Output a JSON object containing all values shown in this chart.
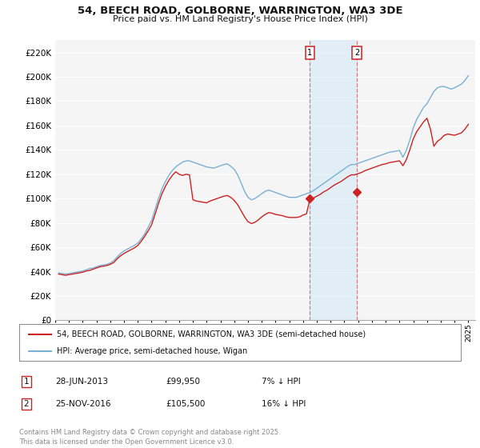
{
  "title": "54, BEECH ROAD, GOLBORNE, WARRINGTON, WA3 3DE",
  "subtitle": "Price paid vs. HM Land Registry's House Price Index (HPI)",
  "background_color": "#ffffff",
  "plot_bg_color": "#f5f5f5",
  "grid_color": "#ffffff",
  "ylim": [
    0,
    230000
  ],
  "yticks": [
    0,
    20000,
    40000,
    60000,
    80000,
    100000,
    120000,
    140000,
    160000,
    180000,
    200000,
    220000
  ],
  "hpi_color": "#7ab0d4",
  "price_color": "#cc2222",
  "vline_color": "#cc3333",
  "vline_alpha": 0.6,
  "shade_color": "#d0e8f8",
  "shade_alpha": 0.5,
  "marker1_year": 2013.5,
  "marker2_year": 2016.92,
  "marker1_label": "1",
  "marker2_label": "2",
  "marker1_value": 99950,
  "marker2_value": 105500,
  "legend1": "54, BEECH ROAD, GOLBORNE, WARRINGTON, WA3 3DE (semi-detached house)",
  "legend2": "HPI: Average price, semi-detached house, Wigan",
  "table_row1": [
    "1",
    "28-JUN-2013",
    "£99,950",
    "7% ↓ HPI"
  ],
  "table_row2": [
    "2",
    "25-NOV-2016",
    "£105,500",
    "16% ↓ HPI"
  ],
  "footnote": "Contains HM Land Registry data © Crown copyright and database right 2025.\nThis data is licensed under the Open Government Licence v3.0.",
  "hpi_data_years": [
    1995.25,
    1995.5,
    1995.75,
    1996.0,
    1996.25,
    1996.5,
    1996.75,
    1997.0,
    1997.25,
    1997.5,
    1997.75,
    1998.0,
    1998.25,
    1998.5,
    1998.75,
    1999.0,
    1999.25,
    1999.5,
    1999.75,
    2000.0,
    2000.25,
    2000.5,
    2000.75,
    2001.0,
    2001.25,
    2001.5,
    2001.75,
    2002.0,
    2002.25,
    2002.5,
    2002.75,
    2003.0,
    2003.25,
    2003.5,
    2003.75,
    2004.0,
    2004.25,
    2004.5,
    2004.75,
    2005.0,
    2005.25,
    2005.5,
    2005.75,
    2006.0,
    2006.25,
    2006.5,
    2006.75,
    2007.0,
    2007.25,
    2007.5,
    2007.75,
    2008.0,
    2008.25,
    2008.5,
    2008.75,
    2009.0,
    2009.25,
    2009.5,
    2009.75,
    2010.0,
    2010.25,
    2010.5,
    2010.75,
    2011.0,
    2011.25,
    2011.5,
    2011.75,
    2012.0,
    2012.25,
    2012.5,
    2012.75,
    2013.0,
    2013.25,
    2013.5,
    2013.75,
    2014.0,
    2014.25,
    2014.5,
    2014.75,
    2015.0,
    2015.25,
    2015.5,
    2015.75,
    2016.0,
    2016.25,
    2016.5,
    2016.75,
    2017.0,
    2017.25,
    2017.5,
    2017.75,
    2018.0,
    2018.25,
    2018.5,
    2018.75,
    2019.0,
    2019.25,
    2019.5,
    2019.75,
    2020.0,
    2020.25,
    2020.5,
    2020.75,
    2021.0,
    2021.25,
    2021.5,
    2021.75,
    2022.0,
    2022.25,
    2022.5,
    2022.75,
    2023.0,
    2023.25,
    2023.5,
    2023.75,
    2024.0,
    2024.25,
    2024.5,
    2024.75,
    2025.0
  ],
  "hpi_data_values": [
    39000,
    38500,
    38000,
    38500,
    39000,
    39500,
    40000,
    40500,
    41500,
    42500,
    43000,
    44000,
    45000,
    45500,
    46000,
    47000,
    49000,
    52000,
    55000,
    57000,
    58500,
    60000,
    61500,
    63500,
    67000,
    71000,
    76500,
    82000,
    91000,
    100000,
    108000,
    114000,
    119000,
    123000,
    126000,
    128000,
    130000,
    131000,
    131000,
    130000,
    129000,
    128000,
    127000,
    126000,
    125500,
    125000,
    126000,
    127000,
    128000,
    128500,
    126500,
    124000,
    119500,
    113000,
    106000,
    101000,
    99000,
    100000,
    102000,
    104000,
    106000,
    107000,
    106000,
    105000,
    104000,
    103000,
    102000,
    101000,
    101000,
    101000,
    102000,
    103000,
    104000,
    105000,
    106500,
    108500,
    110500,
    112500,
    114500,
    116500,
    118500,
    120500,
    122500,
    124500,
    126500,
    128000,
    128000,
    129000,
    130000,
    131000,
    132000,
    133000,
    134000,
    135000,
    136000,
    137000,
    138000,
    138500,
    139000,
    139500,
    134000,
    139500,
    148000,
    158000,
    165000,
    170000,
    175000,
    178000,
    183000,
    188000,
    191000,
    192000,
    192000,
    191000,
    190000,
    191000,
    192500,
    194000,
    197000,
    201000
  ],
  "price_data_years": [
    1995.25,
    1995.5,
    1995.75,
    1996.0,
    1996.25,
    1996.5,
    1996.75,
    1997.0,
    1997.25,
    1997.5,
    1997.75,
    1998.0,
    1998.25,
    1998.5,
    1998.75,
    1999.0,
    1999.25,
    1999.5,
    1999.75,
    2000.0,
    2000.25,
    2000.5,
    2000.75,
    2001.0,
    2001.25,
    2001.5,
    2001.75,
    2002.0,
    2002.25,
    2002.5,
    2002.75,
    2003.0,
    2003.25,
    2003.5,
    2003.75,
    2004.0,
    2004.25,
    2004.5,
    2004.75,
    2005.0,
    2005.25,
    2005.5,
    2005.75,
    2006.0,
    2006.25,
    2006.5,
    2006.75,
    2007.0,
    2007.25,
    2007.5,
    2007.75,
    2008.0,
    2008.25,
    2008.5,
    2008.75,
    2009.0,
    2009.25,
    2009.5,
    2009.75,
    2010.0,
    2010.25,
    2010.5,
    2010.75,
    2011.0,
    2011.25,
    2011.5,
    2011.75,
    2012.0,
    2012.25,
    2012.5,
    2012.75,
    2013.0,
    2013.25,
    2013.5,
    2013.75,
    2014.0,
    2014.25,
    2014.5,
    2014.75,
    2015.0,
    2015.25,
    2015.5,
    2015.75,
    2016.0,
    2016.25,
    2016.5,
    2016.75,
    2017.0,
    2017.25,
    2017.5,
    2017.75,
    2018.0,
    2018.25,
    2018.5,
    2018.75,
    2019.0,
    2019.25,
    2019.5,
    2019.75,
    2020.0,
    2020.25,
    2020.5,
    2020.75,
    2021.0,
    2021.25,
    2021.5,
    2021.75,
    2022.0,
    2022.25,
    2022.5,
    2022.75,
    2023.0,
    2023.25,
    2023.5,
    2023.75,
    2024.0,
    2024.25,
    2024.5,
    2024.75,
    2025.0
  ],
  "price_data_values": [
    38000,
    37500,
    37000,
    37500,
    38000,
    38500,
    39000,
    39500,
    40500,
    41000,
    42000,
    43000,
    44000,
    44500,
    45000,
    46000,
    47500,
    50500,
    53000,
    55000,
    56500,
    58000,
    59500,
    61500,
    65000,
    69000,
    73500,
    78500,
    87000,
    96000,
    104000,
    110000,
    115000,
    119000,
    122000,
    120000,
    119000,
    120000,
    119500,
    99000,
    98000,
    97500,
    97000,
    96500,
    98000,
    99000,
    100000,
    101000,
    102000,
    102500,
    101000,
    98500,
    95000,
    90000,
    85000,
    81000,
    79500,
    80500,
    82500,
    85000,
    87000,
    88500,
    88000,
    87000,
    86500,
    86000,
    85000,
    84500,
    84500,
    84500,
    85000,
    86500,
    87500,
    99950,
    100500,
    102000,
    103500,
    105500,
    107000,
    109000,
    111000,
    112500,
    114000,
    116000,
    118000,
    119500,
    119500,
    120500,
    121500,
    123000,
    124000,
    125000,
    126000,
    127000,
    128000,
    128500,
    129500,
    130000,
    130500,
    131000,
    127000,
    132000,
    140000,
    149000,
    155000,
    159000,
    163000,
    166000,
    157000,
    143000,
    147000,
    149000,
    152000,
    153000,
    152500,
    152000,
    153000,
    154000,
    157000,
    161000
  ]
}
